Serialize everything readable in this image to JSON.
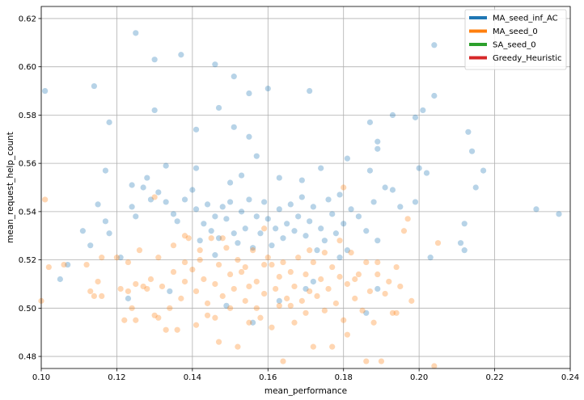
{
  "chart_data": {
    "type": "scatter",
    "xlabel": "mean_performance",
    "ylabel": "mean_request_help_count",
    "xlim": [
      0.1,
      0.24
    ],
    "ylim": [
      0.475,
      0.625
    ],
    "x_ticks": [
      "0.10",
      "0.12",
      "0.14",
      "0.16",
      "0.18",
      "0.20",
      "0.22",
      "0.24"
    ],
    "y_ticks": [
      "0.48",
      "0.50",
      "0.52",
      "0.54",
      "0.56",
      "0.58",
      "0.60",
      "0.62"
    ],
    "grid": true,
    "legend_position": "top-right",
    "legend": [
      {
        "label": "MA_seed_inf_AC",
        "color": "#1f77b4"
      },
      {
        "label": "MA_seed_0",
        "color": "#ff7f0e"
      },
      {
        "label": "SA_seed_0",
        "color": "#2ca02c"
      },
      {
        "label": "Greedy_Heuristic",
        "color": "#d62728"
      }
    ],
    "series": [
      {
        "name": "MA_seed_inf_AC",
        "color": "#1f77b4",
        "points": [
          [
            0.101,
            0.59
          ],
          [
            0.114,
            0.592
          ],
          [
            0.118,
            0.577
          ],
          [
            0.125,
            0.614
          ],
          [
            0.13,
            0.603
          ],
          [
            0.137,
            0.605
          ],
          [
            0.146,
            0.601
          ],
          [
            0.151,
            0.596
          ],
          [
            0.155,
            0.589
          ],
          [
            0.16,
            0.591
          ],
          [
            0.171,
            0.59
          ],
          [
            0.13,
            0.582
          ],
          [
            0.141,
            0.574
          ],
          [
            0.147,
            0.583
          ],
          [
            0.151,
            0.575
          ],
          [
            0.155,
            0.571
          ],
          [
            0.187,
            0.577
          ],
          [
            0.189,
            0.569
          ],
          [
            0.189,
            0.566
          ],
          [
            0.193,
            0.58
          ],
          [
            0.199,
            0.579
          ],
          [
            0.201,
            0.582
          ],
          [
            0.204,
            0.609
          ],
          [
            0.204,
            0.588
          ],
          [
            0.213,
            0.573
          ],
          [
            0.214,
            0.565
          ],
          [
            0.217,
            0.557
          ],
          [
            0.231,
            0.541
          ],
          [
            0.237,
            0.539
          ],
          [
            0.117,
            0.557
          ],
          [
            0.124,
            0.551
          ],
          [
            0.128,
            0.554
          ],
          [
            0.133,
            0.559
          ],
          [
            0.141,
            0.558
          ],
          [
            0.15,
            0.552
          ],
          [
            0.153,
            0.555
          ],
          [
            0.157,
            0.563
          ],
          [
            0.163,
            0.554
          ],
          [
            0.169,
            0.553
          ],
          [
            0.174,
            0.558
          ],
          [
            0.181,
            0.562
          ],
          [
            0.187,
            0.557
          ],
          [
            0.2,
            0.558
          ],
          [
            0.202,
            0.556
          ],
          [
            0.215,
            0.55
          ],
          [
            0.111,
            0.532
          ],
          [
            0.113,
            0.526
          ],
          [
            0.115,
            0.543
          ],
          [
            0.117,
            0.536
          ],
          [
            0.118,
            0.531
          ],
          [
            0.121,
            0.521
          ],
          [
            0.124,
            0.542
          ],
          [
            0.125,
            0.538
          ],
          [
            0.127,
            0.55
          ],
          [
            0.129,
            0.545
          ],
          [
            0.131,
            0.548
          ],
          [
            0.133,
            0.544
          ],
          [
            0.135,
            0.539
          ],
          [
            0.136,
            0.536
          ],
          [
            0.138,
            0.545
          ],
          [
            0.14,
            0.549
          ],
          [
            0.141,
            0.541
          ],
          [
            0.142,
            0.528
          ],
          [
            0.143,
            0.535
          ],
          [
            0.144,
            0.543
          ],
          [
            0.145,
            0.532
          ],
          [
            0.146,
            0.538
          ],
          [
            0.147,
            0.529
          ],
          [
            0.148,
            0.542
          ],
          [
            0.149,
            0.537
          ],
          [
            0.15,
            0.544
          ],
          [
            0.151,
            0.531
          ],
          [
            0.152,
            0.527
          ],
          [
            0.153,
            0.54
          ],
          [
            0.154,
            0.533
          ],
          [
            0.155,
            0.545
          ],
          [
            0.156,
            0.525
          ],
          [
            0.157,
            0.538
          ],
          [
            0.158,
            0.531
          ],
          [
            0.159,
            0.544
          ],
          [
            0.16,
            0.537
          ],
          [
            0.161,
            0.526
          ],
          [
            0.162,
            0.533
          ],
          [
            0.163,
            0.541
          ],
          [
            0.164,
            0.529
          ],
          [
            0.165,
            0.535
          ],
          [
            0.166,
            0.543
          ],
          [
            0.167,
            0.532
          ],
          [
            0.168,
            0.538
          ],
          [
            0.169,
            0.546
          ],
          [
            0.17,
            0.53
          ],
          [
            0.171,
            0.536
          ],
          [
            0.172,
            0.542
          ],
          [
            0.173,
            0.524
          ],
          [
            0.174,
            0.533
          ],
          [
            0.175,
            0.528
          ],
          [
            0.176,
            0.545
          ],
          [
            0.177,
            0.539
          ],
          [
            0.178,
            0.531
          ],
          [
            0.179,
            0.547
          ],
          [
            0.18,
            0.535
          ],
          [
            0.181,
            0.524
          ],
          [
            0.182,
            0.541
          ],
          [
            0.184,
            0.538
          ],
          [
            0.186,
            0.532
          ],
          [
            0.188,
            0.544
          ],
          [
            0.189,
            0.528
          ],
          [
            0.191,
            0.55
          ],
          [
            0.193,
            0.549
          ],
          [
            0.195,
            0.542
          ],
          [
            0.199,
            0.544
          ],
          [
            0.203,
            0.521
          ],
          [
            0.211,
            0.527
          ],
          [
            0.212,
            0.535
          ],
          [
            0.212,
            0.524
          ],
          [
            0.163,
            0.503
          ],
          [
            0.156,
            0.494
          ],
          [
            0.17,
            0.508
          ],
          [
            0.172,
            0.511
          ],
          [
            0.186,
            0.498
          ],
          [
            0.189,
            0.508
          ],
          [
            0.105,
            0.512
          ],
          [
            0.107,
            0.518
          ],
          [
            0.123,
            0.504
          ],
          [
            0.134,
            0.507
          ],
          [
            0.149,
            0.501
          ],
          [
            0.179,
            0.521
          ],
          [
            0.146,
            0.522
          ]
        ]
      },
      {
        "name": "MA_seed_0",
        "color": "#ff7f0e",
        "points": [
          [
            0.1,
            0.503
          ],
          [
            0.101,
            0.545
          ],
          [
            0.102,
            0.517
          ],
          [
            0.106,
            0.518
          ],
          [
            0.112,
            0.518
          ],
          [
            0.113,
            0.507
          ],
          [
            0.114,
            0.505
          ],
          [
            0.115,
            0.511
          ],
          [
            0.116,
            0.521
          ],
          [
            0.116,
            0.505
          ],
          [
            0.121,
            0.508
          ],
          [
            0.122,
            0.495
          ],
          [
            0.123,
            0.507
          ],
          [
            0.123,
            0.519
          ],
          [
            0.124,
            0.5
          ],
          [
            0.125,
            0.51
          ],
          [
            0.126,
            0.524
          ],
          [
            0.127,
            0.509
          ],
          [
            0.128,
            0.508
          ],
          [
            0.129,
            0.512
          ],
          [
            0.13,
            0.546
          ],
          [
            0.13,
            0.497
          ],
          [
            0.131,
            0.521
          ],
          [
            0.132,
            0.509
          ],
          [
            0.133,
            0.491
          ],
          [
            0.134,
            0.5
          ],
          [
            0.135,
            0.526
          ],
          [
            0.135,
            0.515
          ],
          [
            0.136,
            0.491
          ],
          [
            0.137,
            0.504
          ],
          [
            0.138,
            0.519
          ],
          [
            0.138,
            0.511
          ],
          [
            0.139,
            0.529
          ],
          [
            0.14,
            0.516
          ],
          [
            0.141,
            0.507
          ],
          [
            0.141,
            0.493
          ],
          [
            0.142,
            0.52
          ],
          [
            0.143,
            0.512
          ],
          [
            0.144,
            0.502
          ],
          [
            0.145,
            0.529
          ],
          [
            0.146,
            0.496
          ],
          [
            0.146,
            0.51
          ],
          [
            0.147,
            0.486
          ],
          [
            0.147,
            0.518
          ],
          [
            0.148,
            0.505
          ],
          [
            0.149,
            0.525
          ],
          [
            0.15,
            0.5
          ],
          [
            0.15,
            0.514
          ],
          [
            0.151,
            0.508
          ],
          [
            0.152,
            0.52
          ],
          [
            0.152,
            0.484
          ],
          [
            0.153,
            0.515
          ],
          [
            0.154,
            0.503
          ],
          [
            0.154,
            0.517
          ],
          [
            0.155,
            0.509
          ],
          [
            0.156,
            0.524
          ],
          [
            0.157,
            0.5
          ],
          [
            0.157,
            0.511
          ],
          [
            0.158,
            0.496
          ],
          [
            0.159,
            0.518
          ],
          [
            0.159,
            0.506
          ],
          [
            0.16,
            0.521
          ],
          [
            0.161,
            0.492
          ],
          [
            0.162,
            0.508
          ],
          [
            0.163,
            0.513
          ],
          [
            0.163,
            0.501
          ],
          [
            0.164,
            0.478
          ],
          [
            0.164,
            0.519
          ],
          [
            0.165,
            0.504
          ],
          [
            0.166,
            0.515
          ],
          [
            0.167,
            0.494
          ],
          [
            0.167,
            0.509
          ],
          [
            0.168,
            0.521
          ],
          [
            0.169,
            0.503
          ],
          [
            0.17,
            0.498
          ],
          [
            0.17,
            0.514
          ],
          [
            0.171,
            0.507
          ],
          [
            0.172,
            0.484
          ],
          [
            0.172,
            0.519
          ],
          [
            0.173,
            0.505
          ],
          [
            0.174,
            0.512
          ],
          [
            0.175,
            0.499
          ],
          [
            0.175,
            0.523
          ],
          [
            0.176,
            0.508
          ],
          [
            0.177,
            0.484
          ],
          [
            0.177,
            0.517
          ],
          [
            0.178,
            0.502
          ],
          [
            0.179,
            0.528
          ],
          [
            0.179,
            0.513
          ],
          [
            0.18,
            0.495
          ],
          [
            0.18,
            0.55
          ],
          [
            0.181,
            0.51
          ],
          [
            0.181,
            0.489
          ],
          [
            0.182,
            0.523
          ],
          [
            0.183,
            0.504
          ],
          [
            0.184,
            0.514
          ],
          [
            0.185,
            0.499
          ],
          [
            0.186,
            0.478
          ],
          [
            0.186,
            0.519
          ],
          [
            0.187,
            0.507
          ],
          [
            0.188,
            0.494
          ],
          [
            0.189,
            0.514
          ],
          [
            0.19,
            0.478
          ],
          [
            0.191,
            0.506
          ],
          [
            0.192,
            0.511
          ],
          [
            0.193,
            0.498
          ],
          [
            0.194,
            0.517
          ],
          [
            0.195,
            0.509
          ],
          [
            0.196,
            0.532
          ],
          [
            0.197,
            0.537
          ],
          [
            0.198,
            0.503
          ],
          [
            0.204,
            0.476
          ],
          [
            0.205,
            0.527
          ],
          [
            0.12,
            0.521
          ],
          [
            0.125,
            0.495
          ],
          [
            0.131,
            0.496
          ],
          [
            0.138,
            0.53
          ],
          [
            0.144,
            0.497
          ],
          [
            0.155,
            0.494
          ],
          [
            0.161,
            0.518
          ],
          [
            0.166,
            0.501
          ],
          [
            0.171,
            0.524
          ],
          [
            0.183,
            0.512
          ],
          [
            0.189,
            0.519
          ],
          [
            0.194,
            0.498
          ],
          [
            0.142,
            0.524
          ],
          [
            0.148,
            0.529
          ],
          [
            0.159,
            0.533
          ]
        ]
      }
    ]
  }
}
